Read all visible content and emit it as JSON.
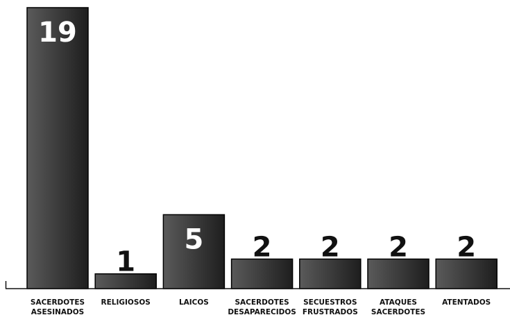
{
  "chart_data": {
    "type": "bar",
    "categories": [
      [
        "SACERDOTES",
        "ASESINADOS"
      ],
      [
        "RELIGIOSOS"
      ],
      [
        "LAICOS"
      ],
      [
        "SACERDOTES",
        "DESAPARECIDOS"
      ],
      [
        "SECUESTROS",
        "FRUSTRADOS"
      ],
      [
        "ATAQUES",
        "SACERDOTES"
      ],
      [
        "ATENTADOS"
      ]
    ],
    "values": [
      19,
      1,
      5,
      2,
      2,
      2,
      2
    ],
    "data_labels": [
      "19",
      "1",
      "5",
      "2",
      "2",
      "2",
      "2"
    ],
    "ylim": [
      0,
      19
    ],
    "grid": false,
    "legend": "none",
    "bar_color_light": "#5a5a5a",
    "bar_color_dark": "#1e1e1e",
    "text_color": "#111111",
    "inside_label_color": "#ffffff"
  }
}
